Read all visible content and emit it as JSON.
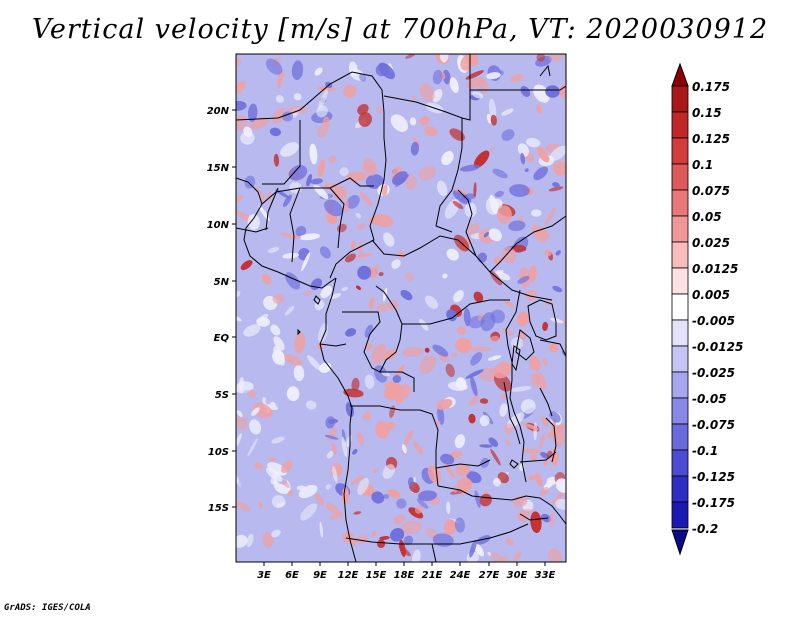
{
  "title": "Vertical velocity [m/s] at 700hPa, VT: 2020030912",
  "footer": "GrADS: IGES/COLA",
  "map": {
    "lat_labels": [
      "20N",
      "15N",
      "10N",
      "5N",
      "EQ",
      "5S",
      "10S",
      "15S"
    ],
    "lon_labels": [
      "3E",
      "6E",
      "9E",
      "12E",
      "15E",
      "18E",
      "21E",
      "24E",
      "27E",
      "30E",
      "33E"
    ]
  },
  "colorbar": {
    "labels": [
      "0.175",
      "0.15",
      "0.125",
      "0.1",
      "0.075",
      "0.05",
      "0.025",
      "0.0125",
      "0.005",
      "-0.005",
      "-0.0125",
      "-0.025",
      "-0.05",
      "-0.075",
      "-0.1",
      "-0.125",
      "-0.175",
      "-0.2"
    ],
    "colors": [
      "#8b0000",
      "#a81818",
      "#c02828",
      "#d23c3c",
      "#dd5a5a",
      "#e87878",
      "#f09898",
      "#f8bcbc",
      "#fde2e2",
      "#ffffff",
      "#e2e2fb",
      "#c4c4f5",
      "#a6a6ee",
      "#8888e6",
      "#6a6add",
      "#4c4cd2",
      "#2e2ec4",
      "#1a1ab0",
      "#0a0a8c"
    ]
  },
  "colors": {
    "background": "#ffffff",
    "base_blue": "#b7b9ef",
    "pink": "#f0a0a0",
    "red": "#c43030",
    "deep_blue": "#6f6fdc",
    "light": "#eeeefc"
  }
}
